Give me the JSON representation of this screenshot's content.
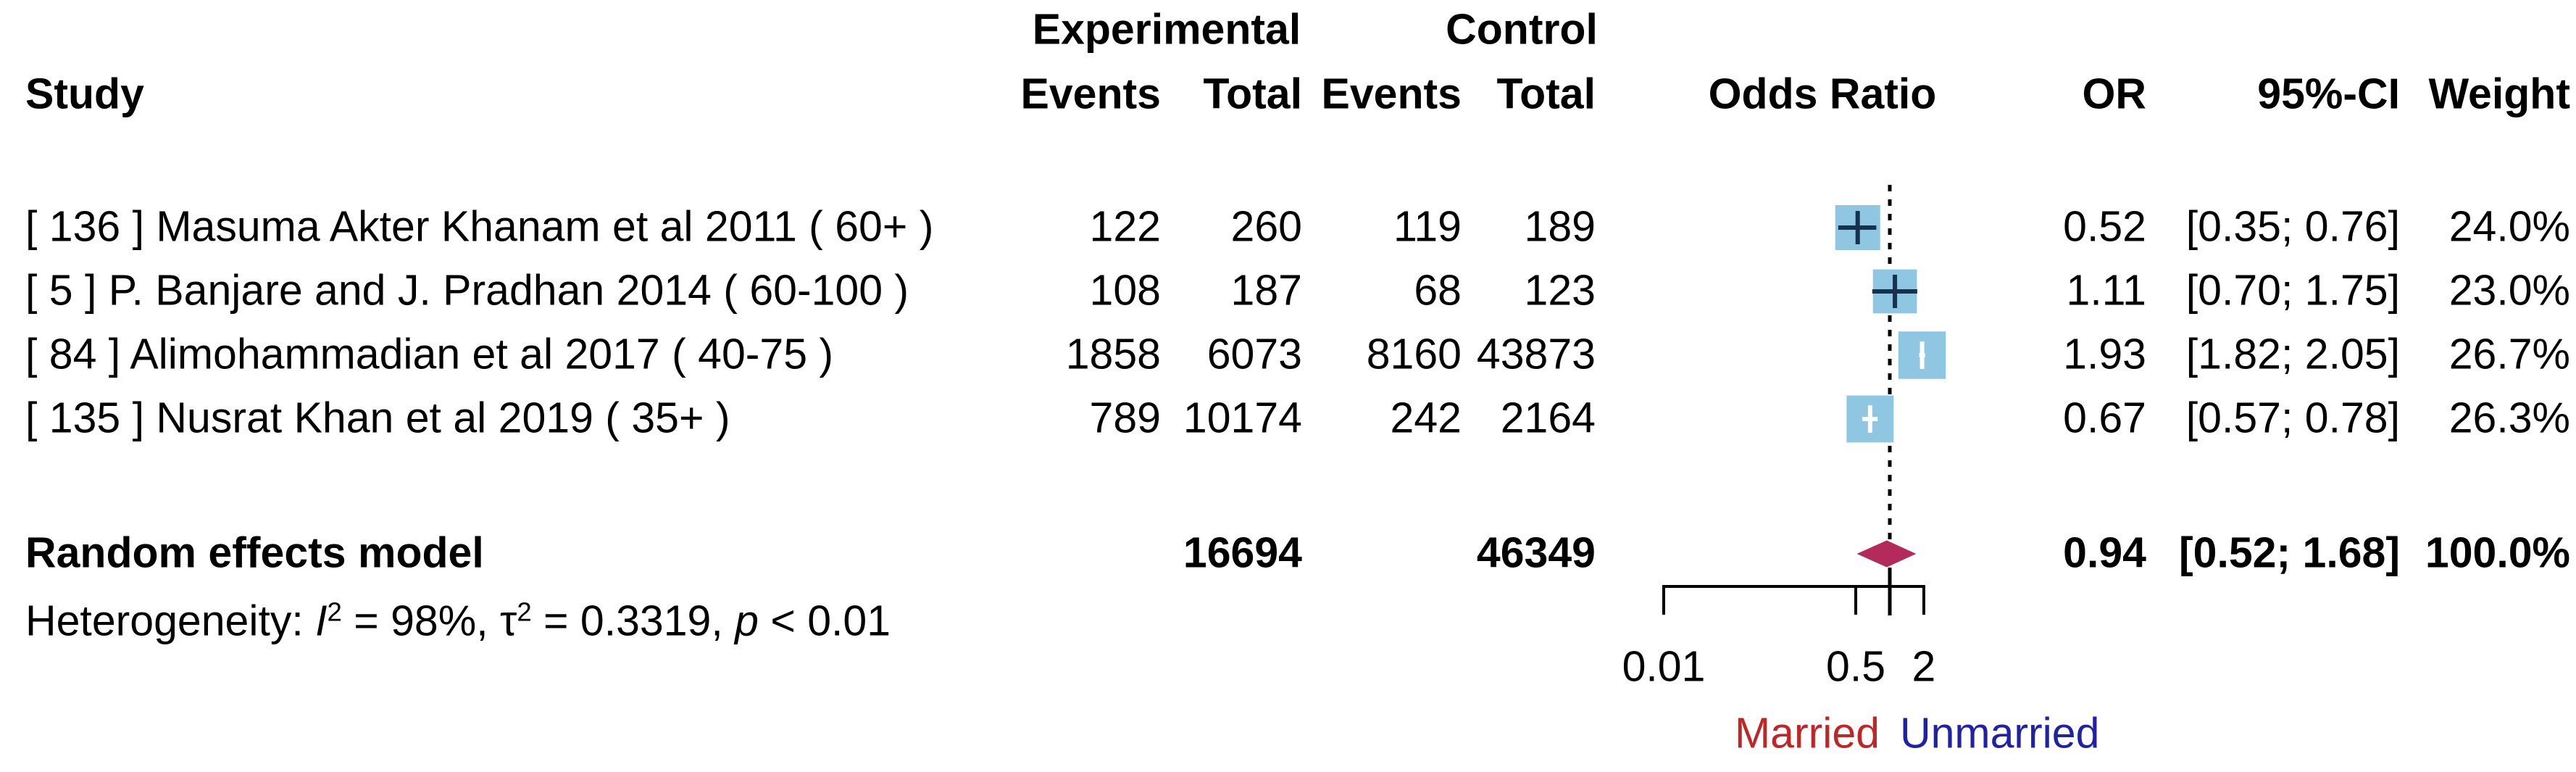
{
  "chart_data": {
    "type": "forest",
    "x_scale": "log",
    "columns": {
      "study": "Study",
      "group1": "Experimental",
      "group2": "Control",
      "exp_events": "Events",
      "exp_total": "Total",
      "ctrl_events": "Events",
      "ctrl_total": "Total",
      "plot": "Odds Ratio",
      "or": "OR",
      "ci": "95%-CI",
      "weight": "Weight"
    },
    "studies": [
      {
        "label": "[ 136 ] Masuma Akter Khanam et al 2011 ( 60+ )",
        "exp_events": "122",
        "exp_total": "260",
        "ctrl_events": "119",
        "ctrl_total": "189",
        "or": 0.52,
        "ci_low": 0.35,
        "ci_high": 0.76,
        "or_text": "0.52",
        "ci_text": "[0.35; 0.76]",
        "weight": 24.0,
        "weight_text": "24.0%"
      },
      {
        "label": "[ 5 ] P. Banjare and J. Pradhan 2014 ( 60-100 )",
        "exp_events": "108",
        "exp_total": "187",
        "ctrl_events": "68",
        "ctrl_total": "123",
        "or": 1.11,
        "ci_low": 0.7,
        "ci_high": 1.75,
        "or_text": "1.11",
        "ci_text": "[0.70; 1.75]",
        "weight": 23.0,
        "weight_text": "23.0%"
      },
      {
        "label": "[ 84 ] Alimohammadian et al 2017 ( 40-75 )",
        "exp_events": "1858",
        "exp_total": "6073",
        "ctrl_events": "8160",
        "ctrl_total": "43873",
        "or": 1.93,
        "ci_low": 1.82,
        "ci_high": 2.05,
        "or_text": "1.93",
        "ci_text": "[1.82; 2.05]",
        "weight": 26.7,
        "weight_text": "26.7%"
      },
      {
        "label": "[ 135 ] Nusrat Khan et al 2019 ( 35+ )",
        "exp_events": "789",
        "exp_total": "10174",
        "ctrl_events": "242",
        "ctrl_total": "2164",
        "or": 0.67,
        "ci_low": 0.57,
        "ci_high": 0.78,
        "or_text": "0.67",
        "ci_text": "[0.57; 0.78]",
        "weight": 26.3,
        "weight_text": "26.3%"
      }
    ],
    "summary": {
      "label": "Random effects model",
      "exp_total": "16694",
      "ctrl_total": "46349",
      "or": 0.94,
      "ci_low": 0.52,
      "ci_high": 1.68,
      "or_text": "0.94",
      "ci_text": "[0.52; 1.68]",
      "weight_text": "100.0%"
    },
    "heterogeneity_segments": [
      {
        "t": "Heterogeneity: "
      },
      {
        "t": "I",
        "style": "it"
      },
      {
        "t": "2",
        "style": "sp"
      },
      {
        "t": " = 98%, "
      },
      {
        "t": "τ"
      },
      {
        "t": "2",
        "style": "sp"
      },
      {
        "t": " = 0.3319, "
      },
      {
        "t": "p",
        "style": "it"
      },
      {
        "t": " < 0.01"
      }
    ],
    "axis": {
      "null_value": 1,
      "ticks": [
        0.01,
        0.5,
        2
      ],
      "tick_labels": [
        "0.01",
        "0.5",
        "2"
      ],
      "range": [
        0.01,
        2
      ],
      "direction_labels": {
        "left": "Married",
        "right": "Unmarried"
      }
    },
    "colors": {
      "square": "#8fc7e2",
      "marker_dark": "#16324f",
      "marker_light": "#ffffff",
      "diamond": "#b42a5a",
      "axis": "#000000",
      "married": "#bf2626",
      "unmarried": "#2121a8",
      "text": "#000000"
    }
  }
}
